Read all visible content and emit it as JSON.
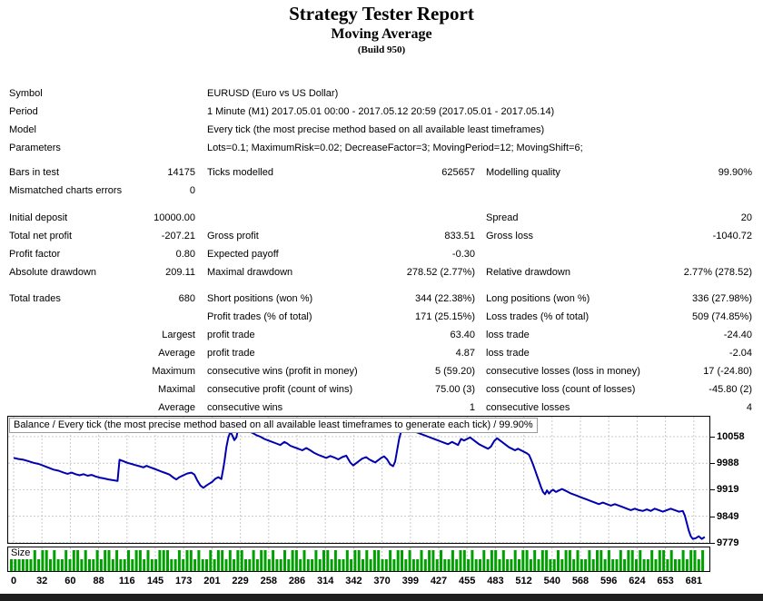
{
  "header": {
    "title": "Strategy Tester Report",
    "subtitle": "Moving Average",
    "build": "(Build 950)"
  },
  "report": {
    "rows": [
      {
        "a1": "Symbol",
        "wide": "EURUSD (Euro vs US Dollar)"
      },
      {
        "a1": "Period",
        "wide": "1 Minute (M1) 2017.05.01 00:00 - 2017.05.12 20:59 (2017.05.01 - 2017.05.14)"
      },
      {
        "a1": "Model",
        "wide": "Every tick (the most precise method based on all available least timeframes)"
      },
      {
        "a1": "Parameters",
        "wide": "Lots=0.1; MaximumRisk=0.02; DecreaseFactor=3; MovingPeriod=12; MovingShift=6;"
      },
      {
        "spacer": 7
      },
      {
        "a1": "Bars in test",
        "a2": "14175",
        "b1": "Ticks modelled",
        "b2": "625657",
        "c1": "Modelling quality",
        "c2": "99.90%"
      },
      {
        "a1": "Mismatched charts errors",
        "a2": "0"
      },
      {
        "spacer": 10
      },
      {
        "a1": "Initial deposit",
        "a2": "10000.00",
        "c1": "Spread",
        "c2": "20"
      },
      {
        "a1": "Total net profit",
        "a2": "-207.21",
        "b1": "Gross profit",
        "b2": "833.51",
        "c1": "Gross loss",
        "c2": "-1040.72"
      },
      {
        "a1": "Profit factor",
        "a2": "0.80",
        "b1": "Expected payoff",
        "b2": "-0.30"
      },
      {
        "a1": "Absolute drawdown",
        "a2": "209.11",
        "b1": "Maximal drawdown",
        "b2": "278.52 (2.77%)",
        "c1": "Relative drawdown",
        "c2": "2.77% (278.52)"
      },
      {
        "spacer": 9
      },
      {
        "a1": "Total trades",
        "a2": "680",
        "b1": "Short positions (won %)",
        "b2": "344 (22.38%)",
        "c1": "Long positions (won %)",
        "c2": "336 (27.98%)"
      },
      {
        "b1": "Profit trades (% of total)",
        "b2": "171 (25.15%)",
        "c1": "Loss trades (% of total)",
        "c2": "509 (74.85%)"
      },
      {
        "a2": "Largest",
        "b1": "profit trade",
        "b2": "63.40",
        "c1": "loss trade",
        "c2": "-24.40"
      },
      {
        "a2": "Average",
        "b1": "profit trade",
        "b2": "4.87",
        "c1": "loss trade",
        "c2": "-2.04"
      },
      {
        "a2": "Maximum",
        "b1": "consecutive wins (profit in money)",
        "b2": "5 (59.20)",
        "c1": "consecutive losses (loss in money)",
        "c2": "17 (-24.80)"
      },
      {
        "a2": "Maximal",
        "b1": "consecutive profit (count of wins)",
        "b2": "75.00 (3)",
        "c1": "consecutive loss (count of losses)",
        "c2": "-45.80 (2)"
      },
      {
        "a2": "Average",
        "b1": "consecutive wins",
        "b2": "1",
        "c1": "consecutive losses",
        "c2": "4"
      }
    ]
  },
  "chart_data": [
    {
      "type": "line",
      "name": "balance-curve",
      "title": "Balance / Every tick (the most precise method based on all available least timeframes to generate each tick) / 99.90%",
      "xlabel": "trades",
      "ylabel": "balance",
      "legend": "none",
      "grid": "dashed",
      "line_color": "#0000B0",
      "grid_color": "#C9C9C9",
      "y_ticks": [
        10058,
        9988,
        9919,
        9849,
        9779
      ],
      "x_ticks": [
        0,
        32,
        60,
        88,
        116,
        145,
        173,
        201,
        229,
        258,
        286,
        314,
        342,
        370,
        399,
        427,
        455,
        483,
        512,
        540,
        568,
        596,
        624,
        653,
        681
      ],
      "xlim": [
        0,
        694
      ],
      "ylim": [
        9760,
        10113
      ],
      "points": [
        [
          0,
          10002
        ],
        [
          5,
          9999
        ],
        [
          10,
          9997
        ],
        [
          15,
          9993
        ],
        [
          20,
          9989
        ],
        [
          25,
          9986
        ],
        [
          30,
          9981
        ],
        [
          35,
          9976
        ],
        [
          40,
          9971
        ],
        [
          45,
          9968
        ],
        [
          50,
          9963
        ],
        [
          54,
          9960
        ],
        [
          58,
          9963
        ],
        [
          62,
          9959
        ],
        [
          66,
          9956
        ],
        [
          70,
          9959
        ],
        [
          74,
          9955
        ],
        [
          78,
          9957
        ],
        [
          82,
          9953
        ],
        [
          86,
          9950
        ],
        [
          90,
          9948
        ],
        [
          95,
          9945
        ],
        [
          100,
          9943
        ],
        [
          104,
          9941
        ],
        [
          106,
          9997
        ],
        [
          110,
          9993
        ],
        [
          114,
          9989
        ],
        [
          118,
          9986
        ],
        [
          122,
          9983
        ],
        [
          126,
          9980
        ],
        [
          130,
          9977
        ],
        [
          133,
          9981
        ],
        [
          136,
          9978
        ],
        [
          140,
          9974
        ],
        [
          144,
          9970
        ],
        [
          148,
          9966
        ],
        [
          152,
          9962
        ],
        [
          156,
          9958
        ],
        [
          160,
          9950
        ],
        [
          163,
          9945
        ],
        [
          166,
          9951
        ],
        [
          170,
          9956
        ],
        [
          174,
          9961
        ],
        [
          178,
          9963
        ],
        [
          181,
          9958
        ],
        [
          184,
          9942
        ],
        [
          187,
          9929
        ],
        [
          190,
          9923
        ],
        [
          193,
          9929
        ],
        [
          196,
          9934
        ],
        [
          199,
          9939
        ],
        [
          202,
          9947
        ],
        [
          205,
          9951
        ],
        [
          208,
          9946
        ],
        [
          210,
          9975
        ],
        [
          211,
          9991
        ],
        [
          213,
          10030
        ],
        [
          215,
          10056
        ],
        [
          217,
          10071
        ],
        [
          219,
          10061
        ],
        [
          221,
          10049
        ],
        [
          223,
          10056
        ],
        [
          225,
          10081
        ],
        [
          227,
          10086
        ],
        [
          231,
          10079
        ],
        [
          235,
          10073
        ],
        [
          239,
          10068
        ],
        [
          243,
          10062
        ],
        [
          247,
          10058
        ],
        [
          251,
          10052
        ],
        [
          255,
          10048
        ],
        [
          259,
          10044
        ],
        [
          263,
          10040
        ],
        [
          267,
          10036
        ],
        [
          271,
          10044
        ],
        [
          274,
          10040
        ],
        [
          277,
          10034
        ],
        [
          281,
          10030
        ],
        [
          285,
          10026
        ],
        [
          289,
          10022
        ],
        [
          293,
          10028
        ],
        [
          297,
          10022
        ],
        [
          301,
          10015
        ],
        [
          305,
          10010
        ],
        [
          309,
          10006
        ],
        [
          313,
          10002
        ],
        [
          317,
          10007
        ],
        [
          321,
          10003
        ],
        [
          325,
          9998
        ],
        [
          329,
          10004
        ],
        [
          333,
          10008
        ],
        [
          337,
          9990
        ],
        [
          340,
          9982
        ],
        [
          343,
          9988
        ],
        [
          346,
          9994
        ],
        [
          349,
          10000
        ],
        [
          353,
          10004
        ],
        [
          356,
          9998
        ],
        [
          359,
          9994
        ],
        [
          362,
          9990
        ],
        [
          365,
          9996
        ],
        [
          368,
          10002
        ],
        [
          371,
          10006
        ],
        [
          374,
          9998
        ],
        [
          377,
          9985
        ],
        [
          380,
          9980
        ],
        [
          382,
          9992
        ],
        [
          384,
          10022
        ],
        [
          386,
          10052
        ],
        [
          388,
          10072
        ],
        [
          390,
          10083
        ],
        [
          393,
          10087
        ],
        [
          396,
          10080
        ],
        [
          399,
          10075
        ],
        [
          403,
          10070
        ],
        [
          407,
          10066
        ],
        [
          411,
          10062
        ],
        [
          415,
          10058
        ],
        [
          419,
          10054
        ],
        [
          423,
          10050
        ],
        [
          427,
          10046
        ],
        [
          431,
          10042
        ],
        [
          435,
          10038
        ],
        [
          439,
          10044
        ],
        [
          442,
          10040
        ],
        [
          445,
          10036
        ],
        [
          448,
          10052
        ],
        [
          451,
          10048
        ],
        [
          454,
          10052
        ],
        [
          457,
          10056
        ],
        [
          460,
          10050
        ],
        [
          463,
          10044
        ],
        [
          466,
          10038
        ],
        [
          469,
          10034
        ],
        [
          472,
          10030
        ],
        [
          475,
          10026
        ],
        [
          478,
          10032
        ],
        [
          481,
          10046
        ],
        [
          484,
          10054
        ],
        [
          487,
          10048
        ],
        [
          490,
          10042
        ],
        [
          493,
          10036
        ],
        [
          496,
          10030
        ],
        [
          499,
          10026
        ],
        [
          502,
          10022
        ],
        [
          505,
          10026
        ],
        [
          508,
          10022
        ],
        [
          511,
          10018
        ],
        [
          514,
          10014
        ],
        [
          516,
          10010
        ],
        [
          518,
          9998
        ],
        [
          520,
          9985
        ],
        [
          522,
          9970
        ],
        [
          524,
          9955
        ],
        [
          526,
          9940
        ],
        [
          528,
          9925
        ],
        [
          530,
          9912
        ],
        [
          532,
          9906
        ],
        [
          534,
          9916
        ],
        [
          536,
          9908
        ],
        [
          538,
          9914
        ],
        [
          540,
          9918
        ],
        [
          543,
          9912
        ],
        [
          546,
          9916
        ],
        [
          549,
          9920
        ],
        [
          552,
          9916
        ],
        [
          555,
          9912
        ],
        [
          558,
          9908
        ],
        [
          562,
          9904
        ],
        [
          566,
          9900
        ],
        [
          570,
          9896
        ],
        [
          574,
          9892
        ],
        [
          578,
          9888
        ],
        [
          582,
          9884
        ],
        [
          586,
          9880
        ],
        [
          590,
          9884
        ],
        [
          594,
          9880
        ],
        [
          598,
          9876
        ],
        [
          602,
          9880
        ],
        [
          606,
          9876
        ],
        [
          610,
          9872
        ],
        [
          614,
          9868
        ],
        [
          618,
          9864
        ],
        [
          622,
          9868
        ],
        [
          626,
          9864
        ],
        [
          630,
          9862
        ],
        [
          634,
          9866
        ],
        [
          638,
          9862
        ],
        [
          642,
          9868
        ],
        [
          646,
          9864
        ],
        [
          650,
          9860
        ],
        [
          654,
          9864
        ],
        [
          658,
          9868
        ],
        [
          662,
          9864
        ],
        [
          666,
          9860
        ],
        [
          670,
          9862
        ],
        [
          672,
          9850
        ],
        [
          674,
          9830
        ],
        [
          676,
          9810
        ],
        [
          678,
          9795
        ],
        [
          680,
          9788
        ],
        [
          683,
          9790
        ],
        [
          686,
          9795
        ],
        [
          689,
          9788
        ],
        [
          692,
          9793
        ]
      ]
    },
    {
      "type": "bar",
      "name": "trade-size-bars",
      "label": "Size",
      "bar_color": "#00A000",
      "grid_color": "#C9C9C9",
      "pattern": "1011001011010010110100101101001011010011100101101001011010110010110100101101001011010010110101100101101001011010010110100101101001011010110010110100101101001011010010110100101101"
    }
  ]
}
